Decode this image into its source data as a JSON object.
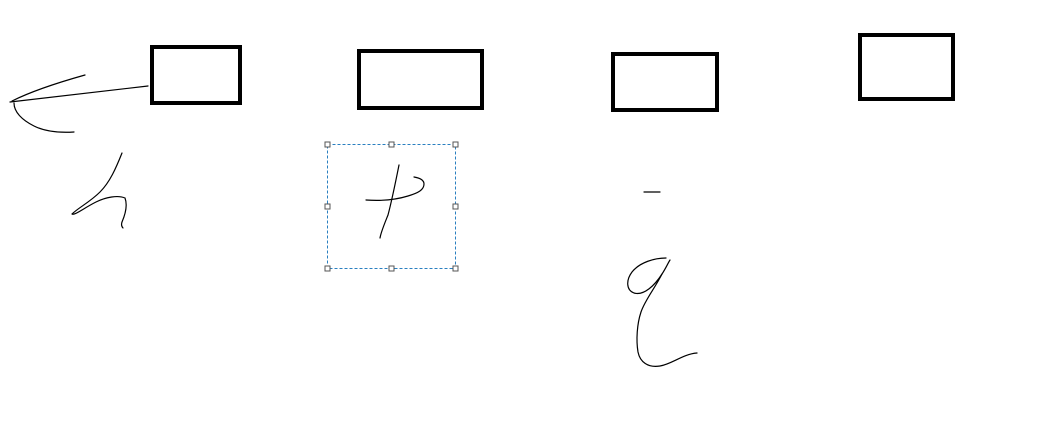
{
  "canvas": {
    "background": "#ffffff",
    "stroke_color": "#000000",
    "selection_color": "#2a7fc0"
  },
  "shapes": [
    {
      "kind": "rectangle",
      "label": "box-1"
    },
    {
      "kind": "rectangle",
      "label": "box-2"
    },
    {
      "kind": "rectangle",
      "label": "box-3"
    },
    {
      "kind": "rectangle",
      "label": "box-4"
    }
  ],
  "ink_strokes": [
    {
      "name": "arrow-stroke"
    },
    {
      "name": "glyph-stroke-1"
    },
    {
      "name": "glyph-stroke-2"
    },
    {
      "name": "dash-stroke"
    },
    {
      "name": "glyph-stroke-3"
    }
  ],
  "selection": {
    "target": "glyph-stroke-2",
    "handles": 8
  }
}
